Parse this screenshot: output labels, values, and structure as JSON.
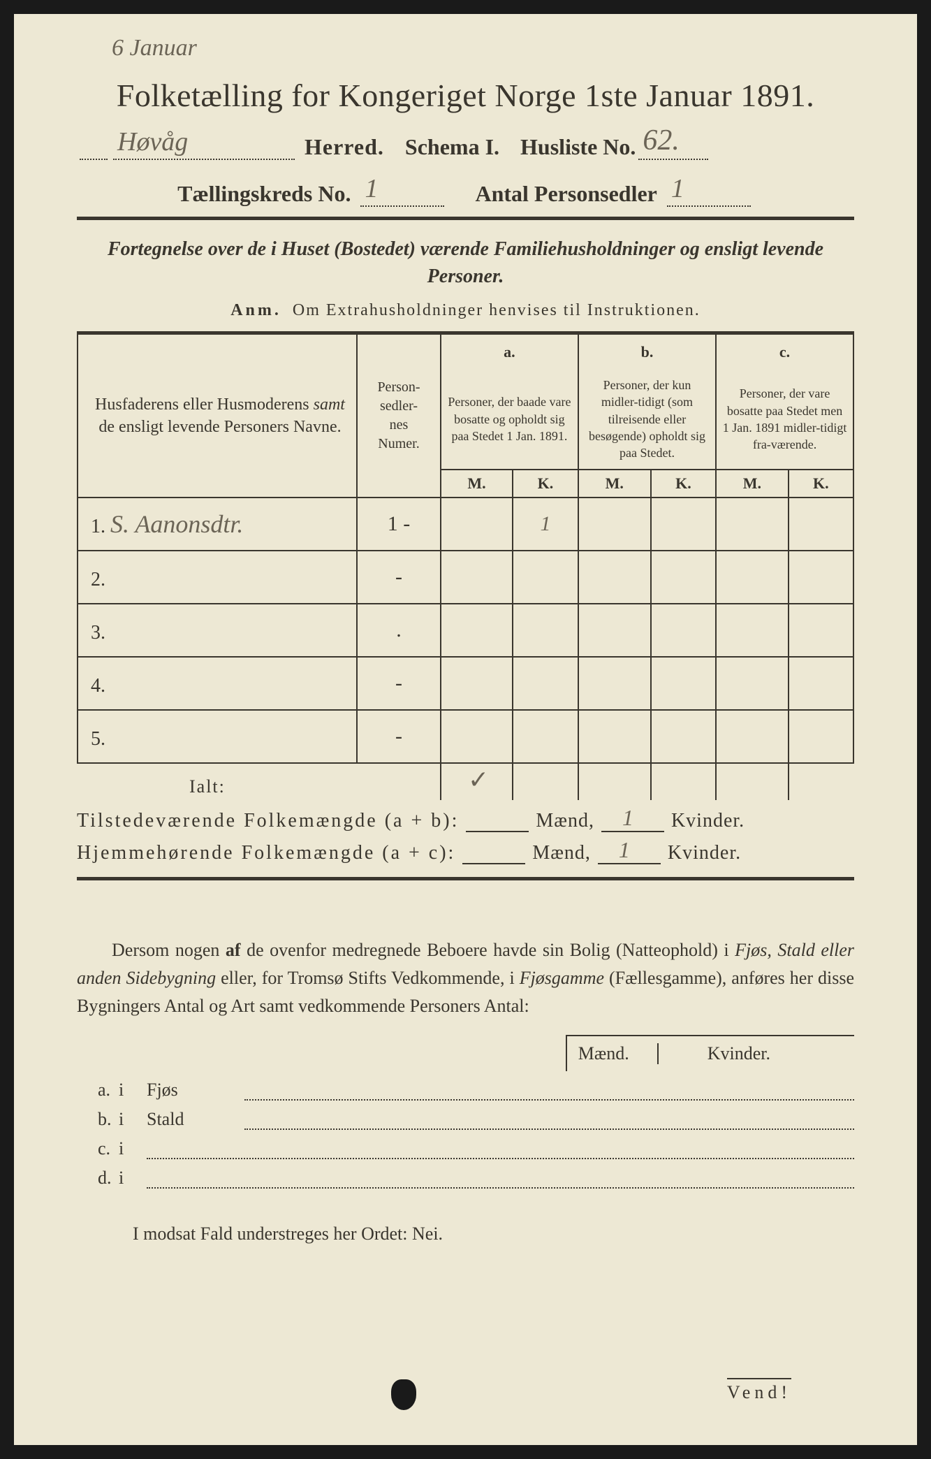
{
  "colors": {
    "page_bg": "#ede8d4",
    "ink": "#3a362e",
    "pencil": "#6b6456",
    "outer_bg": "#1a1a1a"
  },
  "top_note": "6 Januar",
  "title": "Folketælling for Kongeriget Norge 1ste Januar 1891.",
  "line1": {
    "herred_value": "Høvåg",
    "herred_label": "Herred.",
    "schema_label": "Schema I.",
    "husliste_label": "Husliste No.",
    "husliste_value": "62."
  },
  "line2": {
    "kreds_label": "Tællingskreds No.",
    "kreds_value": "1",
    "antal_label": "Antal Personsedler",
    "antal_value": "1"
  },
  "subtitle": "Fortegnelse over de i Huset (Bostedet) værende Familiehusholdninger og ensligt levende Personer.",
  "anm_label": "Anm.",
  "anm_text": "Om Extrahusholdninger henvises til Instruktionen.",
  "table": {
    "col_names": "Husfaderens eller Husmoderens samt de ensligt levende Personers Navne.",
    "col_num": "Person-\nsedler-\nnes\nNumer.",
    "col_a_head": "a.",
    "col_a": "Personer, der baade vare bosatte og opholdt sig paa Stedet 1 Jan. 1891.",
    "col_b_head": "b.",
    "col_b": "Personer, der kun midler-tidigt (som tilreisende eller besøgende) opholdt sig paa Stedet.",
    "col_c_head": "c.",
    "col_c": "Personer, der vare bosatte paa Stedet men 1 Jan. 1891 midler-tidigt fra-værende.",
    "mk_m": "M.",
    "mk_k": "K.",
    "rows": [
      {
        "n": "1.",
        "name": "S. Aanonsdtr.",
        "num": "1 -",
        "aM": "",
        "aK": "1",
        "bM": "",
        "bK": "",
        "cM": "",
        "cK": ""
      },
      {
        "n": "2.",
        "name": "",
        "num": "-",
        "aM": "",
        "aK": "",
        "bM": "",
        "bK": "",
        "cM": "",
        "cK": ""
      },
      {
        "n": "3.",
        "name": "",
        "num": ".",
        "aM": "",
        "aK": "",
        "bM": "",
        "bK": "",
        "cM": "",
        "cK": ""
      },
      {
        "n": "4.",
        "name": "",
        "num": "-",
        "aM": "",
        "aK": "",
        "bM": "",
        "bK": "",
        "cM": "",
        "cK": ""
      },
      {
        "n": "5.",
        "name": "",
        "num": "-",
        "aM": "",
        "aK": "",
        "bM": "",
        "bK": "",
        "cM": "",
        "cK": ""
      }
    ],
    "ialt": "Ialt:"
  },
  "sums": {
    "l1_label": "Tilstedeværende Folkemængde (a + b):",
    "l2_label": "Hjemmehørende Folkemængde (a + c):",
    "maend": "Mænd,",
    "kvinder": "Kvinder.",
    "l1_m": "",
    "l1_k": "1",
    "l2_m": "",
    "l2_k": "1"
  },
  "paragraph": "Dersom nogen af de ovenfor medregnede Beboere havde sin Bolig (Natteophold) i Fjøs, Stald eller anden Sidebygning eller, for Tromsø Stifts Vedkommende, i Fjøsgamme (Fællesgamme), anføres her disse Bygningers Antal og Art samt vedkommende Personers Antal:",
  "mk_maend": "Mænd.",
  "mk_kvinder": "Kvinder.",
  "list": {
    "a": {
      "k": "a.",
      "i": "i",
      "lbl": "Fjøs"
    },
    "b": {
      "k": "b.",
      "i": "i",
      "lbl": "Stald"
    },
    "c": {
      "k": "c.",
      "i": "i",
      "lbl": ""
    },
    "d": {
      "k": "d.",
      "i": "i",
      "lbl": ""
    }
  },
  "footer": "I modsat Fald understreges her Ordet: Nei.",
  "vend": "Vend!",
  "checkmark": "✓"
}
